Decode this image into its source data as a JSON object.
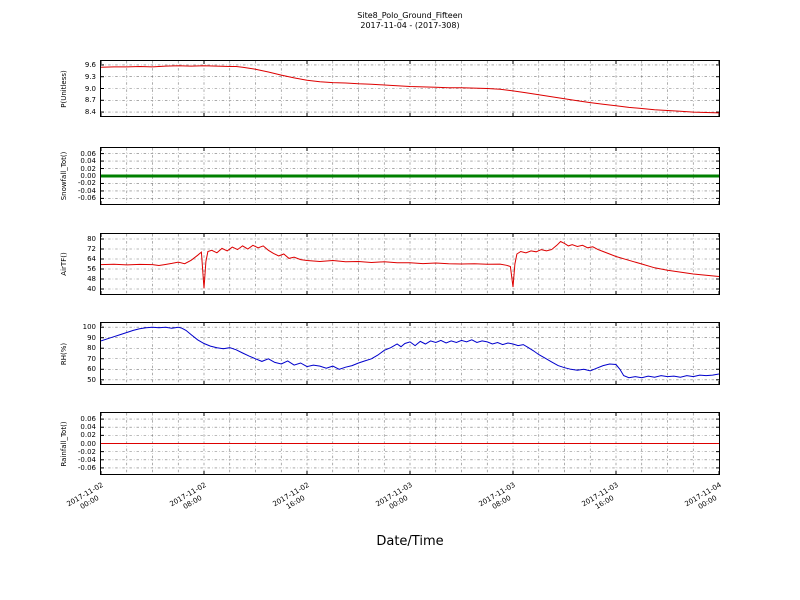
{
  "title": "Site8_Polo_Ground_Fifteen",
  "subtitle": "2017-11-04 - (2017-308)",
  "grid": {
    "x_step": 2,
    "color": "#777777",
    "dash": "2.5,2,0.6,2"
  },
  "x_axis": {
    "label": "Date/Time",
    "range": [
      0,
      48
    ],
    "ticks": [
      {
        "h": 0,
        "date": "2017-11-02",
        "time": "00:00"
      },
      {
        "h": 8,
        "date": "2017-11-02",
        "time": "08:00"
      },
      {
        "h": 16,
        "date": "2017-11-02",
        "time": "16:00"
      },
      {
        "h": 24,
        "date": "2017-11-03",
        "time": "00:00"
      },
      {
        "h": 32,
        "date": "2017-11-03",
        "time": "08:00"
      },
      {
        "h": 40,
        "date": "2017-11-03",
        "time": "16:00"
      },
      {
        "h": 48,
        "date": "2017-11-04",
        "time": "00:00"
      }
    ]
  },
  "chart_data": [
    {
      "type": "line",
      "name": "PUnitless",
      "ylabel": "P(Unitless)",
      "color": "#dd0000",
      "linewidth": 1,
      "xlim": [
        0,
        48
      ],
      "ylim": [
        8.3,
        9.7
      ],
      "yticks": [
        9.6,
        9.3,
        9.0,
        8.7,
        8.4
      ],
      "ytick_labels": [
        "9.6",
        "9.3",
        "9.0",
        "8.7",
        "8.4"
      ],
      "points": [
        [
          0,
          9.54
        ],
        [
          1,
          9.55
        ],
        [
          2,
          9.55
        ],
        [
          3,
          9.56
        ],
        [
          4,
          9.55
        ],
        [
          5,
          9.57
        ],
        [
          6,
          9.58
        ],
        [
          7,
          9.57
        ],
        [
          8,
          9.58
        ],
        [
          9,
          9.57
        ],
        [
          10,
          9.56
        ],
        [
          10.5,
          9.56
        ],
        [
          11,
          9.54
        ],
        [
          12,
          9.49
        ],
        [
          13,
          9.42
        ],
        [
          14,
          9.34
        ],
        [
          15,
          9.27
        ],
        [
          16,
          9.21
        ],
        [
          17,
          9.17
        ],
        [
          18,
          9.15
        ],
        [
          19,
          9.14
        ],
        [
          20,
          9.12
        ],
        [
          21,
          9.11
        ],
        [
          22,
          9.09
        ],
        [
          23,
          9.07
        ],
        [
          24,
          9.05
        ],
        [
          25,
          9.04
        ],
        [
          26,
          9.03
        ],
        [
          27,
          9.02
        ],
        [
          28,
          9.02
        ],
        [
          29,
          9.01
        ],
        [
          30,
          9.0
        ],
        [
          31,
          8.98
        ],
        [
          32,
          8.94
        ],
        [
          33,
          8.89
        ],
        [
          34,
          8.84
        ],
        [
          35,
          8.79
        ],
        [
          36,
          8.74
        ],
        [
          37,
          8.69
        ],
        [
          38,
          8.64
        ],
        [
          39,
          8.6
        ],
        [
          40,
          8.56
        ],
        [
          41,
          8.52
        ],
        [
          42,
          8.49
        ],
        [
          43,
          8.46
        ],
        [
          44,
          8.44
        ],
        [
          45,
          8.42
        ],
        [
          46,
          8.4
        ],
        [
          47,
          8.39
        ],
        [
          48,
          8.38
        ]
      ]
    },
    {
      "type": "line",
      "name": "Snowfall_Tot",
      "ylabel": "Snowfall_Tot()",
      "color": "#008000",
      "linewidth": 3,
      "xlim": [
        0,
        48
      ],
      "ylim": [
        -0.075,
        0.075
      ],
      "yticks": [
        0.06,
        0.04,
        0.02,
        0,
        -0.02,
        -0.04,
        -0.06
      ],
      "ytick_labels": [
        "0.06",
        "0.04",
        "0.02",
        "0.00",
        "-0.02",
        "-0.04",
        "-0.06"
      ],
      "points": [
        [
          0,
          0
        ],
        [
          48,
          0
        ]
      ]
    },
    {
      "type": "line",
      "name": "AirTF",
      "ylabel": "AirTF()",
      "color": "#dd0000",
      "linewidth": 1,
      "xlim": [
        0,
        48
      ],
      "ylim": [
        36,
        84
      ],
      "yticks": [
        80,
        72,
        64,
        56,
        48,
        40
      ],
      "ytick_labels": [
        "80",
        "72",
        "64",
        "56",
        "48",
        "40"
      ],
      "points": [
        [
          0,
          59.5
        ],
        [
          1,
          59.8
        ],
        [
          2,
          59.3
        ],
        [
          3,
          59.7
        ],
        [
          4,
          59.5
        ],
        [
          4.5,
          58.8
        ],
        [
          5,
          59.6
        ],
        [
          5.5,
          60.5
        ],
        [
          6,
          61.5
        ],
        [
          6.5,
          60.2
        ],
        [
          7,
          63
        ],
        [
          7.5,
          67
        ],
        [
          7.8,
          69.5
        ],
        [
          8,
          40.5
        ],
        [
          8.15,
          62
        ],
        [
          8.3,
          70
        ],
        [
          8.6,
          71
        ],
        [
          9,
          69
        ],
        [
          9.4,
          72.5
        ],
        [
          9.8,
          70.5
        ],
        [
          10.2,
          73.5
        ],
        [
          10.6,
          71.5
        ],
        [
          11,
          74.5
        ],
        [
          11.4,
          72
        ],
        [
          11.8,
          75
        ],
        [
          12.2,
          73
        ],
        [
          12.6,
          74.5
        ],
        [
          13,
          71
        ],
        [
          13.4,
          68.5
        ],
        [
          13.8,
          66.5
        ],
        [
          14.2,
          68
        ],
        [
          14.6,
          64.5
        ],
        [
          15,
          65.5
        ],
        [
          15.5,
          63.5
        ],
        [
          16,
          62.8
        ],
        [
          17,
          62
        ],
        [
          18,
          62.8
        ],
        [
          19,
          61.8
        ],
        [
          20,
          62
        ],
        [
          21,
          61.2
        ],
        [
          22,
          61.8
        ],
        [
          23,
          61
        ],
        [
          24,
          61
        ],
        [
          25,
          60.3
        ],
        [
          26,
          60.8
        ],
        [
          27,
          60.2
        ],
        [
          28,
          60
        ],
        [
          29,
          60.2
        ],
        [
          30,
          59.8
        ],
        [
          31,
          59.9
        ],
        [
          31.5,
          59
        ],
        [
          31.8,
          58
        ],
        [
          32,
          41.5
        ],
        [
          32.15,
          60
        ],
        [
          32.3,
          68
        ],
        [
          32.6,
          70
        ],
        [
          33,
          69
        ],
        [
          33.4,
          70.5
        ],
        [
          33.8,
          69.8
        ],
        [
          34.2,
          71.5
        ],
        [
          34.6,
          70.5
        ],
        [
          35,
          71.5
        ],
        [
          35.4,
          75
        ],
        [
          35.7,
          78
        ],
        [
          36,
          76.5
        ],
        [
          36.3,
          74.5
        ],
        [
          36.6,
          75.5
        ],
        [
          37,
          74
        ],
        [
          37.4,
          75
        ],
        [
          37.8,
          73
        ],
        [
          38.2,
          73.8
        ],
        [
          38.6,
          71.5
        ],
        [
          39,
          70
        ],
        [
          39.5,
          68
        ],
        [
          40,
          66
        ],
        [
          41,
          63
        ],
        [
          42,
          60
        ],
        [
          43,
          57
        ],
        [
          44,
          55
        ],
        [
          45,
          53.5
        ],
        [
          46,
          52
        ],
        [
          47,
          51
        ],
        [
          48,
          50
        ]
      ]
    },
    {
      "type": "line",
      "name": "RH",
      "ylabel": "RH(%)",
      "color": "#0000cc",
      "linewidth": 1,
      "xlim": [
        0,
        48
      ],
      "ylim": [
        46,
        104
      ],
      "yticks": [
        100,
        90,
        80,
        70,
        60,
        50
      ],
      "ytick_labels": [
        "100",
        "90",
        "80",
        "70",
        "60",
        "50"
      ],
      "points": [
        [
          0,
          87
        ],
        [
          0.5,
          89
        ],
        [
          1,
          91
        ],
        [
          1.5,
          93
        ],
        [
          2,
          95
        ],
        [
          2.5,
          97
        ],
        [
          3,
          98.5
        ],
        [
          3.5,
          99.5
        ],
        [
          4,
          100
        ],
        [
          4.5,
          99.5
        ],
        [
          5,
          100
        ],
        [
          5.5,
          99
        ],
        [
          6,
          100
        ],
        [
          6.3,
          99
        ],
        [
          6.6,
          97
        ],
        [
          7,
          93
        ],
        [
          7.5,
          88
        ],
        [
          8,
          84.5
        ],
        [
          8.5,
          82
        ],
        [
          9,
          80.5
        ],
        [
          9.5,
          79.5
        ],
        [
          10,
          80.5
        ],
        [
          10.5,
          78.5
        ],
        [
          11,
          75.5
        ],
        [
          11.5,
          72.5
        ],
        [
          12,
          70
        ],
        [
          12.5,
          67.5
        ],
        [
          13,
          70
        ],
        [
          13.5,
          66.5
        ],
        [
          14,
          65
        ],
        [
          14.5,
          68
        ],
        [
          15,
          64
        ],
        [
          15.5,
          66
        ],
        [
          16,
          62.5
        ],
        [
          16.5,
          64
        ],
        [
          17,
          63
        ],
        [
          17.5,
          61
        ],
        [
          18,
          63
        ],
        [
          18.5,
          60
        ],
        [
          19,
          62
        ],
        [
          19.5,
          63.5
        ],
        [
          20,
          66
        ],
        [
          20.5,
          68
        ],
        [
          21,
          70
        ],
        [
          21.5,
          73.5
        ],
        [
          22,
          78
        ],
        [
          22.5,
          80.5
        ],
        [
          23,
          84
        ],
        [
          23.3,
          81.5
        ],
        [
          23.6,
          84.5
        ],
        [
          24,
          86
        ],
        [
          24.4,
          82.5
        ],
        [
          24.8,
          86.5
        ],
        [
          25.2,
          84
        ],
        [
          25.6,
          87
        ],
        [
          26,
          85.5
        ],
        [
          26.4,
          87.5
        ],
        [
          26.8,
          85
        ],
        [
          27.2,
          87
        ],
        [
          27.6,
          85.5
        ],
        [
          28,
          87.5
        ],
        [
          28.4,
          86
        ],
        [
          28.8,
          88
        ],
        [
          29.2,
          85.5
        ],
        [
          29.6,
          87
        ],
        [
          30,
          86
        ],
        [
          30.4,
          84
        ],
        [
          30.8,
          85.5
        ],
        [
          31.2,
          83.5
        ],
        [
          31.6,
          85
        ],
        [
          32,
          84
        ],
        [
          32.4,
          82.5
        ],
        [
          32.8,
          83.5
        ],
        [
          33.2,
          80.5
        ],
        [
          33.6,
          77.5
        ],
        [
          34,
          74
        ],
        [
          34.5,
          70.5
        ],
        [
          35,
          67
        ],
        [
          35.5,
          63.5
        ],
        [
          36,
          61.5
        ],
        [
          36.5,
          60
        ],
        [
          37,
          59
        ],
        [
          37.5,
          60
        ],
        [
          38,
          58.5
        ],
        [
          38.5,
          61
        ],
        [
          39,
          63.5
        ],
        [
          39.5,
          65
        ],
        [
          40,
          64.5
        ],
        [
          40.3,
          60
        ],
        [
          40.6,
          54
        ],
        [
          41,
          52
        ],
        [
          41.5,
          53
        ],
        [
          42,
          52
        ],
        [
          42.5,
          53.5
        ],
        [
          43,
          52.5
        ],
        [
          43.5,
          54
        ],
        [
          44,
          53
        ],
        [
          44.5,
          53.5
        ],
        [
          45,
          52.5
        ],
        [
          45.5,
          54
        ],
        [
          46,
          53
        ],
        [
          46.5,
          54.5
        ],
        [
          47,
          54
        ],
        [
          47.5,
          54.5
        ],
        [
          48,
          55.5
        ]
      ]
    },
    {
      "type": "line",
      "name": "Rainfall_Tot",
      "ylabel": "Rainfall_Tot()",
      "color": "#dd0000",
      "linewidth": 1,
      "xlim": [
        0,
        48
      ],
      "ylim": [
        -0.075,
        0.075
      ],
      "yticks": [
        0.06,
        0.04,
        0.02,
        0,
        -0.02,
        -0.04,
        -0.06
      ],
      "ytick_labels": [
        "0.06",
        "0.04",
        "0.02",
        "0.00",
        "-0.02",
        "-0.04",
        "-0.06"
      ],
      "points": [
        [
          0,
          0
        ],
        [
          48,
          0
        ]
      ]
    }
  ]
}
